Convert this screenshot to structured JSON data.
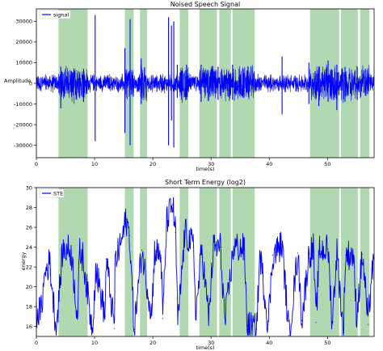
{
  "colors": {
    "series": "#0000ff",
    "shade": "#a9d4a9",
    "axis": "#000000"
  },
  "chart_data": [
    {
      "type": "line",
      "title": "Noised Speech Signal",
      "xlabel": "time(s)",
      "ylabel": "Amplitude",
      "xlim": [
        0,
        58
      ],
      "ylim": [
        -36000,
        36000
      ],
      "xticks": [
        0,
        10,
        20,
        30,
        40,
        50
      ],
      "yticks": [
        -30000,
        -20000,
        -10000,
        0,
        10000,
        20000,
        30000
      ],
      "legend": {
        "placement": "top-left",
        "entries": [
          "signal"
        ]
      },
      "grid": false,
      "shaded_regions": [
        [
          3.8,
          8.8
        ],
        [
          15.2,
          16.7
        ],
        [
          17.8,
          19.0
        ],
        [
          24.6,
          26.1
        ],
        [
          28.0,
          31.0
        ],
        [
          31.4,
          33.4
        ],
        [
          33.7,
          37.5
        ],
        [
          47.0,
          52.0
        ],
        [
          52.3,
          55.2
        ],
        [
          55.6,
          57.2
        ]
      ],
      "series": [
        {
          "name": "signal",
          "spikes": [
            {
              "x": 4.2,
              "max": 8000,
              "min": -12000
            },
            {
              "x": 8.1,
              "max": 7000,
              "min": -9000
            },
            {
              "x": 10.1,
              "max": 33000,
              "min": -28000
            },
            {
              "x": 15.2,
              "max": 17000,
              "min": -24000
            },
            {
              "x": 16.1,
              "max": 31000,
              "min": -30000
            },
            {
              "x": 18.0,
              "max": 12000,
              "min": -10000
            },
            {
              "x": 22.7,
              "max": 32000,
              "min": -30000
            },
            {
              "x": 23.2,
              "max": 28000,
              "min": -18000
            },
            {
              "x": 23.6,
              "max": 30000,
              "min": -31000
            },
            {
              "x": 24.2,
              "max": 9000,
              "min": -7000
            },
            {
              "x": 25.8,
              "max": 9000,
              "min": -8000
            },
            {
              "x": 28.3,
              "max": 9000,
              "min": -9000
            },
            {
              "x": 31.2,
              "max": 8000,
              "min": -8000
            },
            {
              "x": 33.7,
              "max": 9000,
              "min": -8000
            },
            {
              "x": 35.5,
              "max": 7000,
              "min": -7000
            },
            {
              "x": 42.2,
              "max": 13000,
              "min": -15000
            },
            {
              "x": 46.8,
              "max": 10000,
              "min": -10000
            },
            {
              "x": 48.5,
              "max": 8000,
              "min": -11000
            },
            {
              "x": 50.1,
              "max": 11000,
              "min": -9000
            },
            {
              "x": 51.6,
              "max": 9000,
              "min": -13000
            },
            {
              "x": 53.0,
              "max": 8000,
              "min": -9000
            },
            {
              "x": 55.1,
              "max": 8000,
              "min": -8000
            },
            {
              "x": 56.5,
              "max": 7000,
              "min": -6000
            }
          ]
        }
      ]
    },
    {
      "type": "line",
      "title": "Short Term Energy (log2)",
      "xlabel": "time(s)",
      "ylabel": "energy",
      "xlim": [
        0,
        58
      ],
      "ylim": [
        15,
        30
      ],
      "xticks": [
        0,
        10,
        20,
        30,
        40,
        50
      ],
      "yticks": [
        16,
        18,
        20,
        22,
        24,
        26,
        28,
        30
      ],
      "legend": {
        "placement": "top-left",
        "entries": [
          "STE"
        ]
      },
      "grid": false,
      "shaded_regions": [
        [
          3.8,
          8.8
        ],
        [
          15.2,
          16.7
        ],
        [
          17.8,
          19.0
        ],
        [
          24.6,
          26.1
        ],
        [
          28.0,
          31.0
        ],
        [
          31.4,
          33.4
        ],
        [
          33.7,
          37.5
        ],
        [
          47.0,
          52.0
        ],
        [
          52.3,
          55.2
        ],
        [
          55.6,
          57.2
        ]
      ],
      "series": [
        {
          "name": "STE",
          "peaks": [
            {
              "x": 1.5,
              "y": 21.5
            },
            {
              "x": 2.3,
              "y": 22.5
            },
            {
              "x": 4.5,
              "y": 23.6
            },
            {
              "x": 5.5,
              "y": 23.8
            },
            {
              "x": 6.0,
              "y": 23.4
            },
            {
              "x": 7.4,
              "y": 23.5
            },
            {
              "x": 8.0,
              "y": 23.0
            },
            {
              "x": 10.2,
              "y": 22.0
            },
            {
              "x": 12.0,
              "y": 22.8
            },
            {
              "x": 13.5,
              "y": 22.3
            },
            {
              "x": 14.8,
              "y": 25.0
            },
            {
              "x": 15.4,
              "y": 26.8
            },
            {
              "x": 16.0,
              "y": 25.2
            },
            {
              "x": 18.1,
              "y": 23.7
            },
            {
              "x": 20.3,
              "y": 23.6
            },
            {
              "x": 21.4,
              "y": 23.2
            },
            {
              "x": 22.4,
              "y": 26.7
            },
            {
              "x": 23.4,
              "y": 28.3
            },
            {
              "x": 23.9,
              "y": 25.5
            },
            {
              "x": 25.5,
              "y": 25.5
            },
            {
              "x": 27.0,
              "y": 24.0
            },
            {
              "x": 28.4,
              "y": 23.9
            },
            {
              "x": 30.4,
              "y": 23.9
            },
            {
              "x": 31.6,
              "y": 24.0
            },
            {
              "x": 33.9,
              "y": 24.1
            },
            {
              "x": 35.7,
              "y": 23.8
            },
            {
              "x": 38.4,
              "y": 23.4
            },
            {
              "x": 40.6,
              "y": 23.2
            },
            {
              "x": 42.2,
              "y": 24.3
            },
            {
              "x": 44.9,
              "y": 23.4
            },
            {
              "x": 46.8,
              "y": 23.3
            },
            {
              "x": 47.6,
              "y": 23.9
            },
            {
              "x": 48.6,
              "y": 23.7
            },
            {
              "x": 50.1,
              "y": 23.8
            },
            {
              "x": 51.6,
              "y": 23.7
            },
            {
              "x": 53.1,
              "y": 23.2
            },
            {
              "x": 54.4,
              "y": 23.3
            },
            {
              "x": 56.0,
              "y": 23.3
            },
            {
              "x": 57.6,
              "y": 21.8
            }
          ],
          "troughs": [
            {
              "x": 0.8,
              "y": 17.5
            },
            {
              "x": 3.4,
              "y": 15.6
            },
            {
              "x": 7.1,
              "y": 16.8
            },
            {
              "x": 9.6,
              "y": 15.6
            },
            {
              "x": 11.8,
              "y": 17.0
            },
            {
              "x": 13.4,
              "y": 15.8
            },
            {
              "x": 16.8,
              "y": 15.7
            },
            {
              "x": 19.8,
              "y": 17.2
            },
            {
              "x": 21.7,
              "y": 16.8
            },
            {
              "x": 24.3,
              "y": 16.2
            },
            {
              "x": 27.4,
              "y": 17.2
            },
            {
              "x": 29.6,
              "y": 16.8
            },
            {
              "x": 32.4,
              "y": 16.4
            },
            {
              "x": 36.2,
              "y": 16.1
            },
            {
              "x": 37.8,
              "y": 15.7
            },
            {
              "x": 39.8,
              "y": 16.2
            },
            {
              "x": 43.4,
              "y": 15.1
            },
            {
              "x": 45.6,
              "y": 16.6
            },
            {
              "x": 48.0,
              "y": 16.4
            },
            {
              "x": 50.8,
              "y": 16.3
            },
            {
              "x": 52.7,
              "y": 15.4
            },
            {
              "x": 55.0,
              "y": 17.0
            },
            {
              "x": 57.0,
              "y": 16.2
            }
          ]
        }
      ]
    }
  ]
}
